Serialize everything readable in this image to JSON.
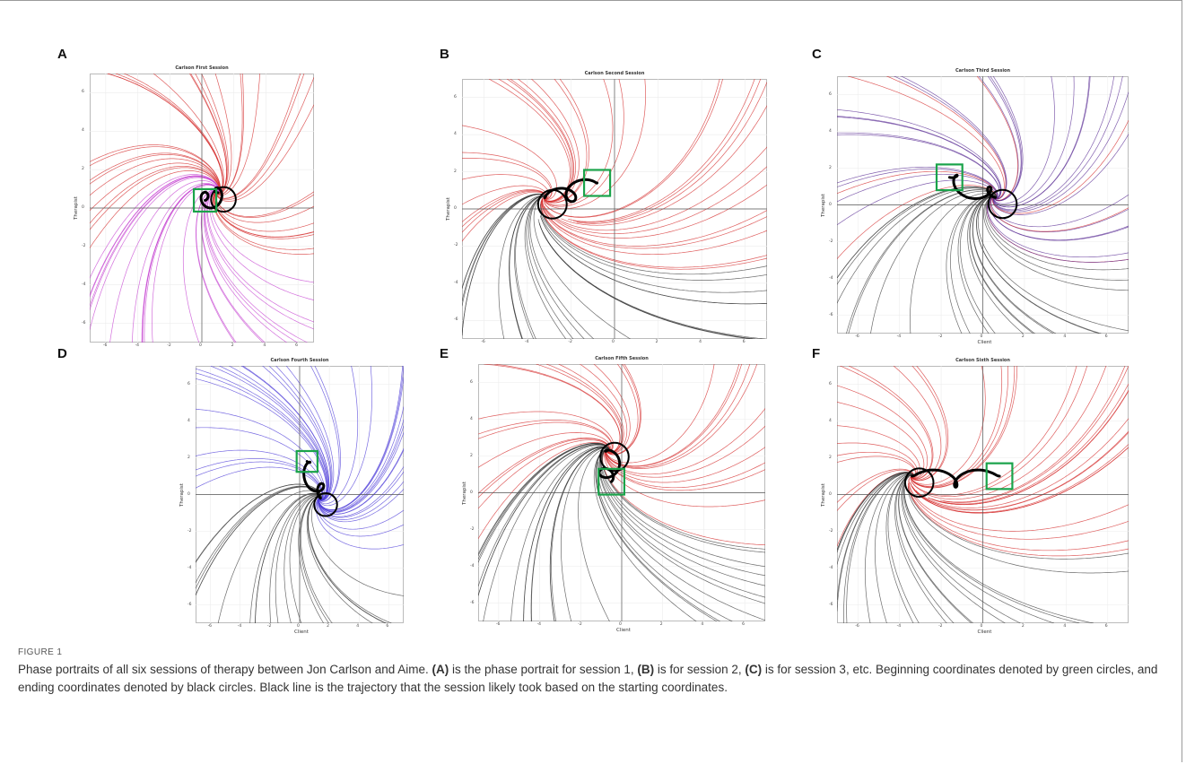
{
  "figure": {
    "label": "FIGURE 1",
    "caption": {
      "segments": [
        {
          "text": "Phase portraits of all six sessions of therapy between Jon Carlson and Aime. ",
          "bold": false
        },
        {
          "text": "(A)",
          "bold": true
        },
        {
          "text": " is the phase portrait for session 1, ",
          "bold": false
        },
        {
          "text": "(B)",
          "bold": true
        },
        {
          "text": " is for session 2, ",
          "bold": false
        },
        {
          "text": "(C)",
          "bold": true
        },
        {
          "text": " is for session 3, etc. Beginning coordinates denoted by green circles, and ending coordinates denoted by black circles. Black line is the trajectory that the session likely took based on the starting coordinates.",
          "bold": false
        }
      ]
    }
  },
  "colors": {
    "red": "#d42a2a",
    "magenta": "#c43fd0",
    "purple": "#5a2c94",
    "blue": "#4c3bd8",
    "gray": "#3a3a3a",
    "green_box": "#1aa34a",
    "trajectory": "#000000"
  },
  "panels": [
    {
      "letter": "A",
      "title": "Carlson First Session",
      "xlabel": "",
      "ylabel": "Therapist",
      "xticks": [
        "-6",
        "-4",
        "-2",
        "0",
        "2",
        "4",
        "6"
      ],
      "yticks": [
        "6",
        "4",
        "2",
        "0",
        "-2",
        "-4",
        "-6"
      ],
      "palette": [
        "red",
        "magenta"
      ],
      "focus": [
        1.0,
        0.8
      ],
      "start": [
        0.2,
        0.4
      ],
      "trend": "left"
    },
    {
      "letter": "B",
      "title": "Carlson Second Session",
      "xlabel": "",
      "ylabel": "Therapist",
      "xticks": [
        "-6",
        "-4",
        "-2",
        "0",
        "2",
        "4",
        "6"
      ],
      "yticks": [
        "6",
        "4",
        "2",
        "0",
        "-2",
        "-4",
        "-6"
      ],
      "palette": [
        "red",
        "gray"
      ],
      "focus": [
        -3.2,
        0.6
      ],
      "start": [
        -0.8,
        1.4
      ],
      "trend": "right"
    },
    {
      "letter": "C",
      "title": "Carlson Third Session",
      "xlabel": "Client",
      "ylabel": "Therapist",
      "xticks": [
        "-6",
        "-4",
        "-2",
        "0",
        "2",
        "4",
        "6"
      ],
      "yticks": [
        "6",
        "4",
        "2",
        "0",
        "-2",
        "-4",
        "-6"
      ],
      "palette": [
        "purple",
        "red",
        "gray"
      ],
      "focus": [
        0.6,
        0.4
      ],
      "start": [
        -1.6,
        1.5
      ],
      "trend": "down"
    },
    {
      "letter": "D",
      "title": "Carlson Fourth Session",
      "xlabel": "Client",
      "ylabel": "Therapist",
      "xticks": [
        "-6",
        "-4",
        "-2",
        "0",
        "2",
        "4",
        "6"
      ],
      "yticks": [
        "6",
        "4",
        "2",
        "0",
        "-2",
        "-4",
        "-6"
      ],
      "palette": [
        "blue",
        "gray"
      ],
      "focus": [
        1.4,
        -0.2
      ],
      "start": [
        0.5,
        1.8
      ],
      "trend": "down"
    },
    {
      "letter": "E",
      "title": "Carlson Fifth Session",
      "xlabel": "Client",
      "ylabel": "Therapist",
      "xticks": [
        "-6",
        "-4",
        "-2",
        "0",
        "2",
        "4",
        "6"
      ],
      "yticks": [
        "6",
        "4",
        "2",
        "0",
        "-2",
        "-4",
        "-6"
      ],
      "palette": [
        "red",
        "gray"
      ],
      "focus": [
        -0.7,
        2.3
      ],
      "start": [
        -0.5,
        0.6
      ],
      "trend": "right"
    },
    {
      "letter": "F",
      "title": "Carlson Sixth Session",
      "xlabel": "Client",
      "ylabel": "Therapist",
      "xticks": [
        "-6",
        "-4",
        "-2",
        "0",
        "2",
        "4",
        "6"
      ],
      "yticks": [
        "6",
        "4",
        "2",
        "0",
        "-2",
        "-4",
        "-6"
      ],
      "palette": [
        "red",
        "gray"
      ],
      "focus": [
        -3.4,
        1.0
      ],
      "start": [
        0.8,
        1.0
      ],
      "trend": "right"
    }
  ]
}
